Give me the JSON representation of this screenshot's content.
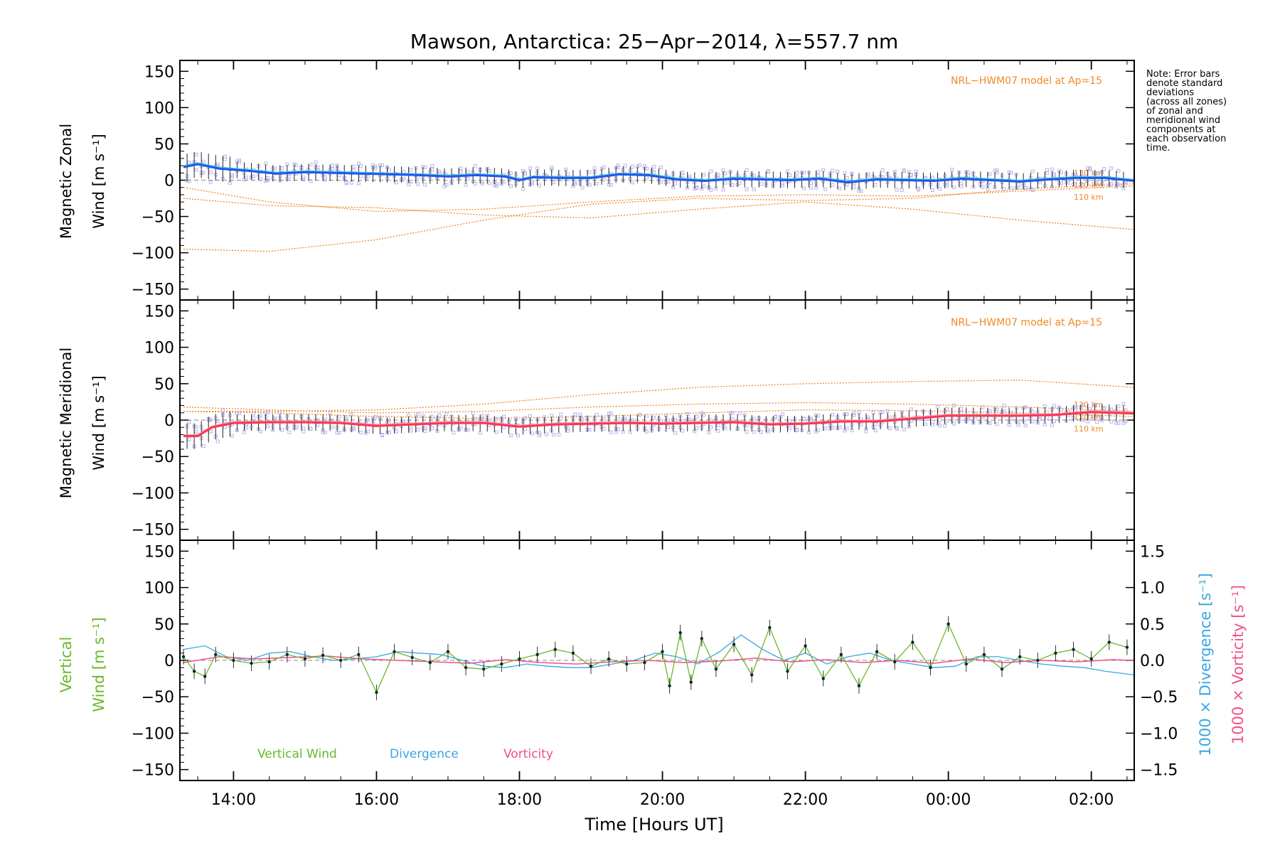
{
  "chart_data": {
    "title": "Mawson, Antarctica: 25−Apr−2014, λ=557.7 nm",
    "note_lines": [
      "Note: Error bars",
      "denote standard",
      "deviations",
      "(across all zones)",
      "of zonal and",
      "meridional wind",
      "components at",
      "each observation",
      "time."
    ],
    "x_axis": {
      "label": "Time [Hours UT]",
      "range_hours": [
        13.25,
        26.6
      ],
      "ticks": [
        {
          "hour": 14,
          "label": "14:00"
        },
        {
          "hour": 16,
          "label": "16:00"
        },
        {
          "hour": 18,
          "label": "18:00"
        },
        {
          "hour": 20,
          "label": "20:00"
        },
        {
          "hour": 22,
          "label": "22:00"
        },
        {
          "hour": 24,
          "label": "00:00"
        },
        {
          "hour": 26,
          "label": "02:00"
        }
      ]
    },
    "colors": {
      "zonal": "#2255ee",
      "meridional": "#ff3355",
      "model": "#f08a28",
      "scatter": "#b8b4e8",
      "error_bar": "#222222",
      "vertical": "#6ab82a",
      "vertical_points": "#0c2a2a",
      "divergence": "#3aa6e0",
      "vorticity": "#f0508a"
    },
    "panels": [
      {
        "id": "zonal",
        "type": "line",
        "ylabel_line1": "Magnetic Zonal",
        "ylabel_line2": "Wind [m s⁻¹]",
        "ylim": [
          -165,
          165
        ],
        "yticks": [
          -150,
          -100,
          -50,
          0,
          50,
          100,
          150
        ],
        "model_label": "NRL−HWM07 model at Ap=15",
        "altitude_labels": [
          "130 km",
          "120 km",
          "110 km"
        ],
        "series": {
          "mean_wind": {
            "x": [
              13.3,
              13.5,
              13.8,
              14.2,
              14.6,
              15.0,
              15.4,
              15.8,
              16.2,
              16.6,
              17.0,
              17.4,
              17.8,
              18.0,
              18.2,
              18.6,
              19.0,
              19.4,
              19.8,
              20.2,
              20.6,
              21.0,
              21.4,
              21.8,
              22.2,
              22.6,
              23.0,
              23.4,
              23.8,
              24.2,
              24.6,
              25.0,
              25.4,
              25.8,
              26.2,
              26.6
            ],
            "y": [
              18,
              22,
              16,
              13,
              9,
              11,
              10,
              9,
              8,
              7,
              5,
              7,
              5,
              0,
              4,
              3,
              3,
              8,
              7,
              1,
              -1,
              2,
              1,
              0,
              2,
              -3,
              1,
              0,
              -1,
              2,
              0,
              -2,
              1,
              3,
              3,
              -1
            ]
          },
          "model_curves": [
            {
              "name": "110 km",
              "x": [
                13.3,
                14.5,
                16.0,
                17.5,
                19.0,
                20.5,
                22.0,
                23.5,
                25.0,
                26.6
              ],
              "y": [
                -95,
                -98,
                -82,
                -55,
                -33,
                -25,
                -28,
                -25,
                -12,
                -5
              ]
            },
            {
              "name": "120 km",
              "x": [
                13.3,
                14.5,
                16.0,
                17.5,
                19.0,
                20.5,
                22.0,
                23.5,
                25.0,
                26.6
              ],
              "y": [
                -10,
                -30,
                -43,
                -40,
                -30,
                -22,
                -20,
                -22,
                -15,
                -8
              ]
            },
            {
              "name": "130 km",
              "x": [
                13.3,
                14.5,
                16.0,
                17.5,
                19.0,
                20.5,
                22.0,
                23.5,
                25.0,
                26.6
              ],
              "y": [
                -25,
                -35,
                -38,
                -48,
                -52,
                -40,
                -30,
                -40,
                -55,
                -68
              ]
            }
          ]
        }
      },
      {
        "id": "meridional",
        "type": "line",
        "ylabel_line1": "Magnetic Meridional",
        "ylabel_line2": "Wind [m s⁻¹]",
        "ylim": [
          -165,
          165
        ],
        "yticks": [
          -150,
          -100,
          -50,
          0,
          50,
          100,
          150
        ],
        "model_label": "NRL−HWM07 model at Ap=15",
        "altitude_labels": [
          "130 km",
          "120 km",
          "110 km"
        ],
        "series": {
          "mean_wind": {
            "x": [
              13.3,
              13.5,
              13.7,
              14.0,
              14.5,
              15.0,
              15.5,
              16.0,
              16.5,
              17.0,
              17.5,
              18.0,
              18.5,
              19.0,
              19.5,
              20.0,
              20.5,
              21.0,
              21.5,
              22.0,
              22.5,
              23.0,
              23.5,
              24.0,
              24.5,
              25.0,
              25.5,
              26.0,
              26.6
            ],
            "y": [
              -22,
              -22,
              -10,
              -4,
              -3,
              -3,
              -4,
              -8,
              -6,
              -4,
              -4,
              -9,
              -6,
              -5,
              -4,
              -5,
              -4,
              -3,
              -6,
              -5,
              -2,
              -2,
              2,
              6,
              6,
              6,
              7,
              11,
              9
            ]
          },
          "model_curves": [
            {
              "name": "110 km",
              "x": [
                13.3,
                14.5,
                16.0,
                17.5,
                19.0,
                20.5,
                22.0,
                23.5,
                25.0,
                26.6
              ],
              "y": [
                12,
                10,
                5,
                2,
                5,
                10,
                14,
                13,
                10,
                5
              ]
            },
            {
              "name": "120 km",
              "x": [
                13.3,
                14.5,
                16.0,
                17.5,
                19.0,
                20.5,
                22.0,
                23.5,
                25.0,
                26.6
              ],
              "y": [
                18,
                14,
                10,
                12,
                18,
                22,
                24,
                22,
                18,
                12
              ]
            },
            {
              "name": "130 km",
              "x": [
                13.3,
                14.5,
                16.0,
                17.5,
                19.0,
                20.5,
                22.0,
                23.5,
                25.0,
                26.6
              ],
              "y": [
                12,
                12,
                14,
                22,
                35,
                45,
                50,
                53,
                55,
                45
              ]
            }
          ]
        }
      },
      {
        "id": "vertical",
        "type": "line",
        "ylabel_line1": "Vertical",
        "ylabel_line2": "Wind [m s⁻¹]",
        "ylim": [
          -165,
          165
        ],
        "yticks": [
          -150,
          -100,
          -50,
          0,
          50,
          100,
          150
        ],
        "right_axis": {
          "ylim": [
            -1.65,
            1.65
          ],
          "ticks": [
            {
              "value": -1.5,
              "label": "−1.5"
            },
            {
              "value": -1.0,
              "label": "−1.0"
            },
            {
              "value": -0.5,
              "label": "−0.5"
            },
            {
              "value": 0.0,
              "label": "0.0"
            },
            {
              "value": 0.5,
              "label": "0.5"
            },
            {
              "value": 1.0,
              "label": "1.0"
            },
            {
              "value": 1.5,
              "label": "1.5"
            }
          ],
          "label_divergence": "1000 × Divergence [s⁻¹]",
          "label_vorticity": "1000 × Vorticity [s⁻¹]"
        },
        "legend": [
          "Vertical Wind",
          "Divergence",
          "Vorticity"
        ],
        "series": {
          "vertical_wind": {
            "x": [
              13.3,
              13.45,
              13.6,
              13.75,
              14.0,
              14.25,
              14.5,
              14.75,
              15.0,
              15.25,
              15.5,
              15.75,
              16.0,
              16.25,
              16.5,
              16.75,
              17.0,
              17.25,
              17.5,
              17.75,
              18.0,
              18.25,
              18.5,
              18.75,
              19.0,
              19.25,
              19.5,
              19.75,
              20.0,
              20.1,
              20.25,
              20.4,
              20.55,
              20.75,
              21.0,
              21.25,
              21.5,
              21.75,
              22.0,
              22.25,
              22.5,
              22.75,
              23.0,
              23.25,
              23.5,
              23.75,
              24.0,
              24.25,
              24.5,
              24.75,
              25.0,
              25.25,
              25.5,
              25.75,
              26.0,
              26.25,
              26.5
            ],
            "y": [
              5,
              -15,
              -22,
              8,
              0,
              -4,
              -2,
              8,
              2,
              7,
              0,
              8,
              -44,
              12,
              4,
              -3,
              12,
              -10,
              -12,
              -5,
              2,
              8,
              15,
              10,
              -8,
              2,
              -5,
              -3,
              12,
              -35,
              38,
              -30,
              30,
              -12,
              22,
              -20,
              45,
              -15,
              20,
              -25,
              8,
              -35,
              12,
              -2,
              25,
              -10,
              50,
              -5,
              8,
              -12,
              5,
              0,
              10,
              15,
              2,
              25,
              18
            ]
          },
          "divergence": {
            "x": [
              13.3,
              13.6,
              13.9,
              14.2,
              14.5,
              14.8,
              15.1,
              15.4,
              15.7,
              16.0,
              16.3,
              16.6,
              16.9,
              17.2,
              17.5,
              17.8,
              18.1,
              18.4,
              18.7,
              19.0,
              19.3,
              19.6,
              19.9,
              20.2,
              20.5,
              20.8,
              21.1,
              21.4,
              21.7,
              22.0,
              22.3,
              22.6,
              22.9,
              23.2,
              23.5,
              23.8,
              24.1,
              24.4,
              24.7,
              25.0,
              25.3,
              25.6,
              25.9,
              26.2,
              26.6
            ],
            "y": [
              0.15,
              0.2,
              0.05,
              0.0,
              0.1,
              0.12,
              0.05,
              0.0,
              0.02,
              0.05,
              0.12,
              0.1,
              0.08,
              0.0,
              -0.08,
              -0.1,
              -0.05,
              -0.08,
              -0.1,
              -0.1,
              -0.05,
              0.0,
              0.1,
              0.05,
              -0.05,
              0.12,
              0.35,
              0.15,
              0.0,
              0.1,
              -0.05,
              0.05,
              0.1,
              0.0,
              -0.05,
              -0.1,
              -0.08,
              0.05,
              0.05,
              0.0,
              -0.05,
              -0.08,
              -0.1,
              -0.15,
              -0.2
            ]
          },
          "vorticity": {
            "x": [
              13.3,
              13.8,
              14.3,
              14.8,
              15.3,
              15.8,
              16.3,
              16.8,
              17.3,
              17.8,
              18.3,
              18.8,
              19.3,
              19.8,
              20.3,
              20.8,
              21.3,
              21.8,
              22.3,
              22.8,
              23.3,
              23.8,
              24.3,
              24.8,
              25.3,
              25.8,
              26.3,
              26.6
            ],
            "y": [
              -0.03,
              0.05,
              0.02,
              0.04,
              0.06,
              0.02,
              0.0,
              -0.02,
              -0.04,
              0.01,
              -0.03,
              -0.05,
              -0.02,
              0.0,
              -0.03,
              -0.01,
              0.03,
              -0.02,
              0.01,
              -0.03,
              0.0,
              -0.04,
              0.02,
              -0.03,
              0.0,
              -0.02,
              0.01,
              0.0
            ]
          }
        }
      }
    ]
  }
}
